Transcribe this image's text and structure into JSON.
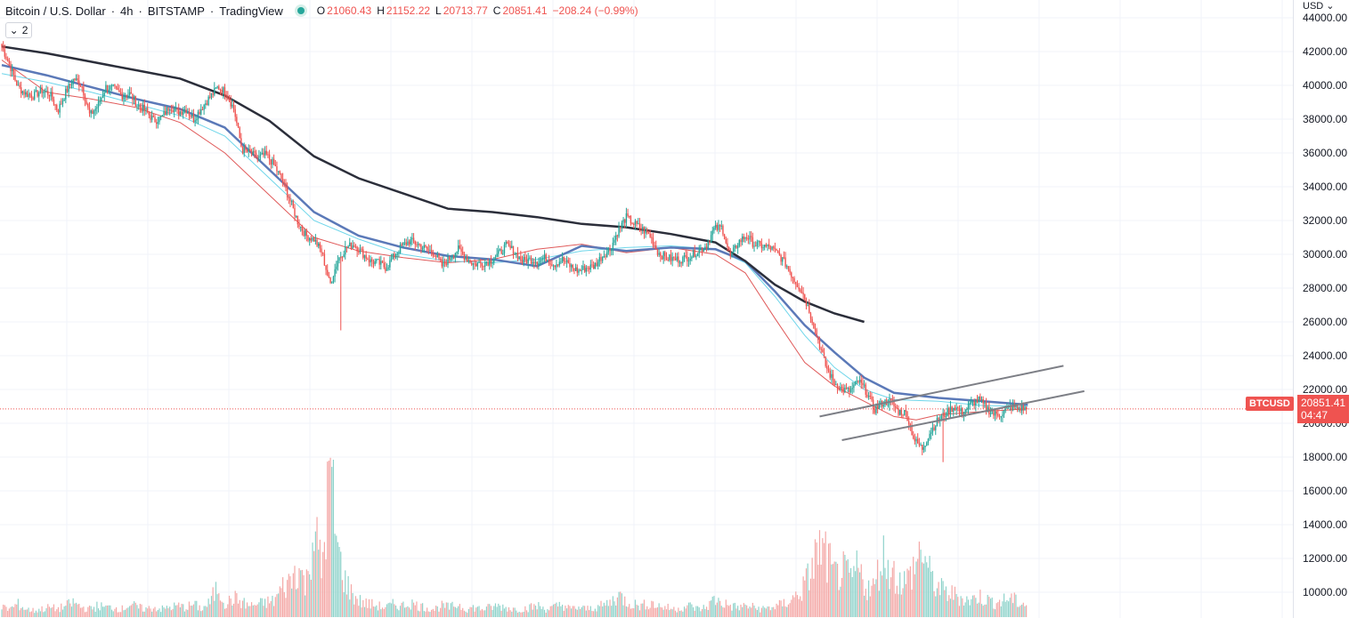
{
  "header": {
    "symbol_title": "Bitcoin / U.S. Dollar",
    "interval": "4h",
    "exchange": "BITSTAMP",
    "provider": "TradingView",
    "separator": "·",
    "ohlc": {
      "o_label": "O",
      "open": "21060.43",
      "h_label": "H",
      "high": "21152.22",
      "l_label": "L",
      "low": "20713.77",
      "c_label": "C",
      "close": "20851.41",
      "change": "−208.24 (−0.99%)"
    }
  },
  "indicators_toggle": {
    "count": "2"
  },
  "price_axis": {
    "currency": "USD",
    "ticks": [
      "44000.00",
      "42000.00",
      "40000.00",
      "38000.00",
      "36000.00",
      "34000.00",
      "32000.00",
      "30000.00",
      "28000.00",
      "26000.00",
      "24000.00",
      "22000.00",
      "20000.00",
      "18000.00",
      "16000.00",
      "14000.00",
      "12000.00",
      "10000.00"
    ],
    "last_price_symbol": "BTCUSD",
    "last_price": "20851.41",
    "countdown": "04:47"
  },
  "colors": {
    "up": "#26a69a",
    "down": "#ef5350",
    "ma_fast": "#e05a5a",
    "ma_cyan": "#6fd6ea",
    "ma_mid": "#5b79b8",
    "ma_slow": "#2b2e3a",
    "trendline": "#7d7f86",
    "grid": "#f0f3fa"
  },
  "chart_data": {
    "type": "candlestick",
    "title": "Bitcoin / U.S. Dollar · 4h · BITSTAMP",
    "ylabel": "USD",
    "ylim": [
      9000,
      44600
    ],
    "grid": true,
    "last_price": 20851.41,
    "candle_path_closes": [
      42300,
      41200,
      39900,
      39500,
      39400,
      39700,
      39500,
      38500,
      39600,
      40400,
      40000,
      38200,
      38800,
      39900,
      39800,
      39400,
      39500,
      38800,
      38500,
      37900,
      38100,
      38800,
      38400,
      38600,
      38000,
      38700,
      39300,
      39900,
      39600,
      38600,
      36200,
      36000,
      35700,
      35900,
      35300,
      34400,
      33200,
      31900,
      31100,
      30900,
      30100,
      28200,
      29700,
      30400,
      30600,
      30100,
      29600,
      29500,
      29200,
      29900,
      30500,
      30800,
      30600,
      30300,
      30100,
      29300,
      29800,
      30300,
      29800,
      29400,
      29500,
      29600,
      30000,
      30500,
      30200,
      29600,
      29700,
      29600,
      29800,
      29400,
      29700,
      29300,
      29000,
      29200,
      29300,
      29900,
      30300,
      31400,
      32200,
      31800,
      31500,
      31100,
      30100,
      29800,
      29700,
      29700,
      29900,
      30200,
      30500,
      31500,
      31600,
      29800,
      30700,
      31100,
      30600,
      30500,
      30400,
      30000,
      29400,
      28500,
      27800,
      26500,
      24900,
      23300,
      22400,
      22000,
      21900,
      22500,
      21900,
      20800,
      21200,
      21300,
      20700,
      20600,
      19000,
      18500,
      19500,
      20200,
      20600,
      21000,
      20600,
      21100,
      21400,
      20900,
      20500,
      20600,
      21000,
      20900,
      20850
    ],
    "volume_series_relative": [
      0.06,
      0.05,
      0.08,
      0.05,
      0.04,
      0.05,
      0.06,
      0.05,
      0.07,
      0.09,
      0.06,
      0.05,
      0.07,
      0.06,
      0.06,
      0.05,
      0.08,
      0.06,
      0.05,
      0.06,
      0.05,
      0.06,
      0.07,
      0.06,
      0.08,
      0.05,
      0.09,
      0.19,
      0.08,
      0.12,
      0.09,
      0.07,
      0.08,
      0.09,
      0.1,
      0.18,
      0.22,
      0.32,
      0.19,
      0.56,
      0.28,
      0.92,
      0.4,
      0.21,
      0.13,
      0.09,
      0.08,
      0.07,
      0.06,
      0.08,
      0.07,
      0.09,
      0.07,
      0.06,
      0.05,
      0.07,
      0.06,
      0.08,
      0.05,
      0.06,
      0.05,
      0.06,
      0.07,
      0.06,
      0.05,
      0.05,
      0.06,
      0.07,
      0.05,
      0.06,
      0.08,
      0.05,
      0.06,
      0.05,
      0.06,
      0.07,
      0.09,
      0.14,
      0.1,
      0.08,
      0.07,
      0.09,
      0.07,
      0.06,
      0.05,
      0.06,
      0.07,
      0.05,
      0.06,
      0.11,
      0.09,
      0.07,
      0.06,
      0.07,
      0.06,
      0.05,
      0.06,
      0.07,
      0.09,
      0.12,
      0.17,
      0.27,
      0.42,
      0.38,
      0.25,
      0.29,
      0.23,
      0.3,
      0.19,
      0.18,
      0.39,
      0.3,
      0.23,
      0.22,
      0.31,
      0.43,
      0.25,
      0.18,
      0.15,
      0.14,
      0.12,
      0.1,
      0.13,
      0.11,
      0.09,
      0.1,
      0.12,
      0.09,
      0.08
    ],
    "moving_averages": [
      {
        "color_key": "ma_fast",
        "points": [
          [
            0,
            41500
          ],
          [
            30,
            39600
          ],
          [
            60,
            39200
          ],
          [
            90,
            38700
          ],
          [
            120,
            37800
          ],
          [
            150,
            36000
          ],
          [
            180,
            33500
          ],
          [
            210,
            31000
          ],
          [
            240,
            30200
          ],
          [
            270,
            29800
          ],
          [
            300,
            29500
          ],
          [
            330,
            29700
          ],
          [
            360,
            30300
          ],
          [
            390,
            30600
          ],
          [
            420,
            30100
          ],
          [
            450,
            30400
          ],
          [
            480,
            30000
          ],
          [
            500,
            28900
          ],
          [
            520,
            26200
          ],
          [
            540,
            23600
          ],
          [
            560,
            22200
          ],
          [
            580,
            21300
          ],
          [
            600,
            20400
          ],
          [
            615,
            20200
          ],
          [
            630,
            20500
          ],
          [
            660,
            20700
          ],
          [
            690,
            20850
          ]
        ]
      },
      {
        "color_key": "ma_cyan",
        "points": [
          [
            0,
            40700
          ],
          [
            30,
            40200
          ],
          [
            60,
            39600
          ],
          [
            90,
            38900
          ],
          [
            120,
            38200
          ],
          [
            150,
            37000
          ],
          [
            180,
            34500
          ],
          [
            210,
            32000
          ],
          [
            240,
            30900
          ],
          [
            270,
            30000
          ],
          [
            300,
            29600
          ],
          [
            330,
            29500
          ],
          [
            360,
            29700
          ],
          [
            390,
            30200
          ],
          [
            420,
            30400
          ],
          [
            450,
            30500
          ],
          [
            480,
            30300
          ],
          [
            500,
            29500
          ],
          [
            520,
            27500
          ],
          [
            540,
            25200
          ],
          [
            560,
            23300
          ],
          [
            580,
            22000
          ],
          [
            600,
            21400
          ],
          [
            630,
            21300
          ],
          [
            660,
            21050
          ],
          [
            690,
            21000
          ]
        ]
      },
      {
        "color_key": "ma_mid",
        "points": [
          [
            0,
            41200
          ],
          [
            30,
            40600
          ],
          [
            60,
            39900
          ],
          [
            90,
            39200
          ],
          [
            120,
            38600
          ],
          [
            150,
            37500
          ],
          [
            180,
            35000
          ],
          [
            210,
            32500
          ],
          [
            240,
            31100
          ],
          [
            270,
            30400
          ],
          [
            300,
            29900
          ],
          [
            330,
            29700
          ],
          [
            360,
            29300
          ],
          [
            390,
            30500
          ],
          [
            420,
            30200
          ],
          [
            450,
            30400
          ],
          [
            480,
            30300
          ],
          [
            500,
            29600
          ],
          [
            520,
            27800
          ],
          [
            540,
            25800
          ],
          [
            560,
            24200
          ],
          [
            580,
            22700
          ],
          [
            600,
            21800
          ],
          [
            630,
            21500
          ],
          [
            660,
            21300
          ],
          [
            690,
            21100
          ]
        ]
      },
      {
        "color_key": "ma_slow",
        "points": [
          [
            0,
            42300
          ],
          [
            30,
            41900
          ],
          [
            60,
            41400
          ],
          [
            90,
            40900
          ],
          [
            120,
            40400
          ],
          [
            150,
            39400
          ],
          [
            180,
            37900
          ],
          [
            210,
            35800
          ],
          [
            240,
            34500
          ],
          [
            270,
            33600
          ],
          [
            300,
            32700
          ],
          [
            330,
            32500
          ],
          [
            360,
            32200
          ],
          [
            390,
            31800
          ],
          [
            420,
            31600
          ],
          [
            450,
            31200
          ],
          [
            480,
            30700
          ],
          [
            500,
            29600
          ],
          [
            520,
            28200
          ],
          [
            540,
            27200
          ],
          [
            560,
            26500
          ],
          [
            580,
            26000
          ]
        ]
      }
    ],
    "trendlines": [
      {
        "from": [
          550,
          20400
        ],
        "to": [
          714,
          23400
        ]
      },
      {
        "from": [
          565,
          19000
        ],
        "to": [
          728,
          21900
        ]
      }
    ]
  }
}
